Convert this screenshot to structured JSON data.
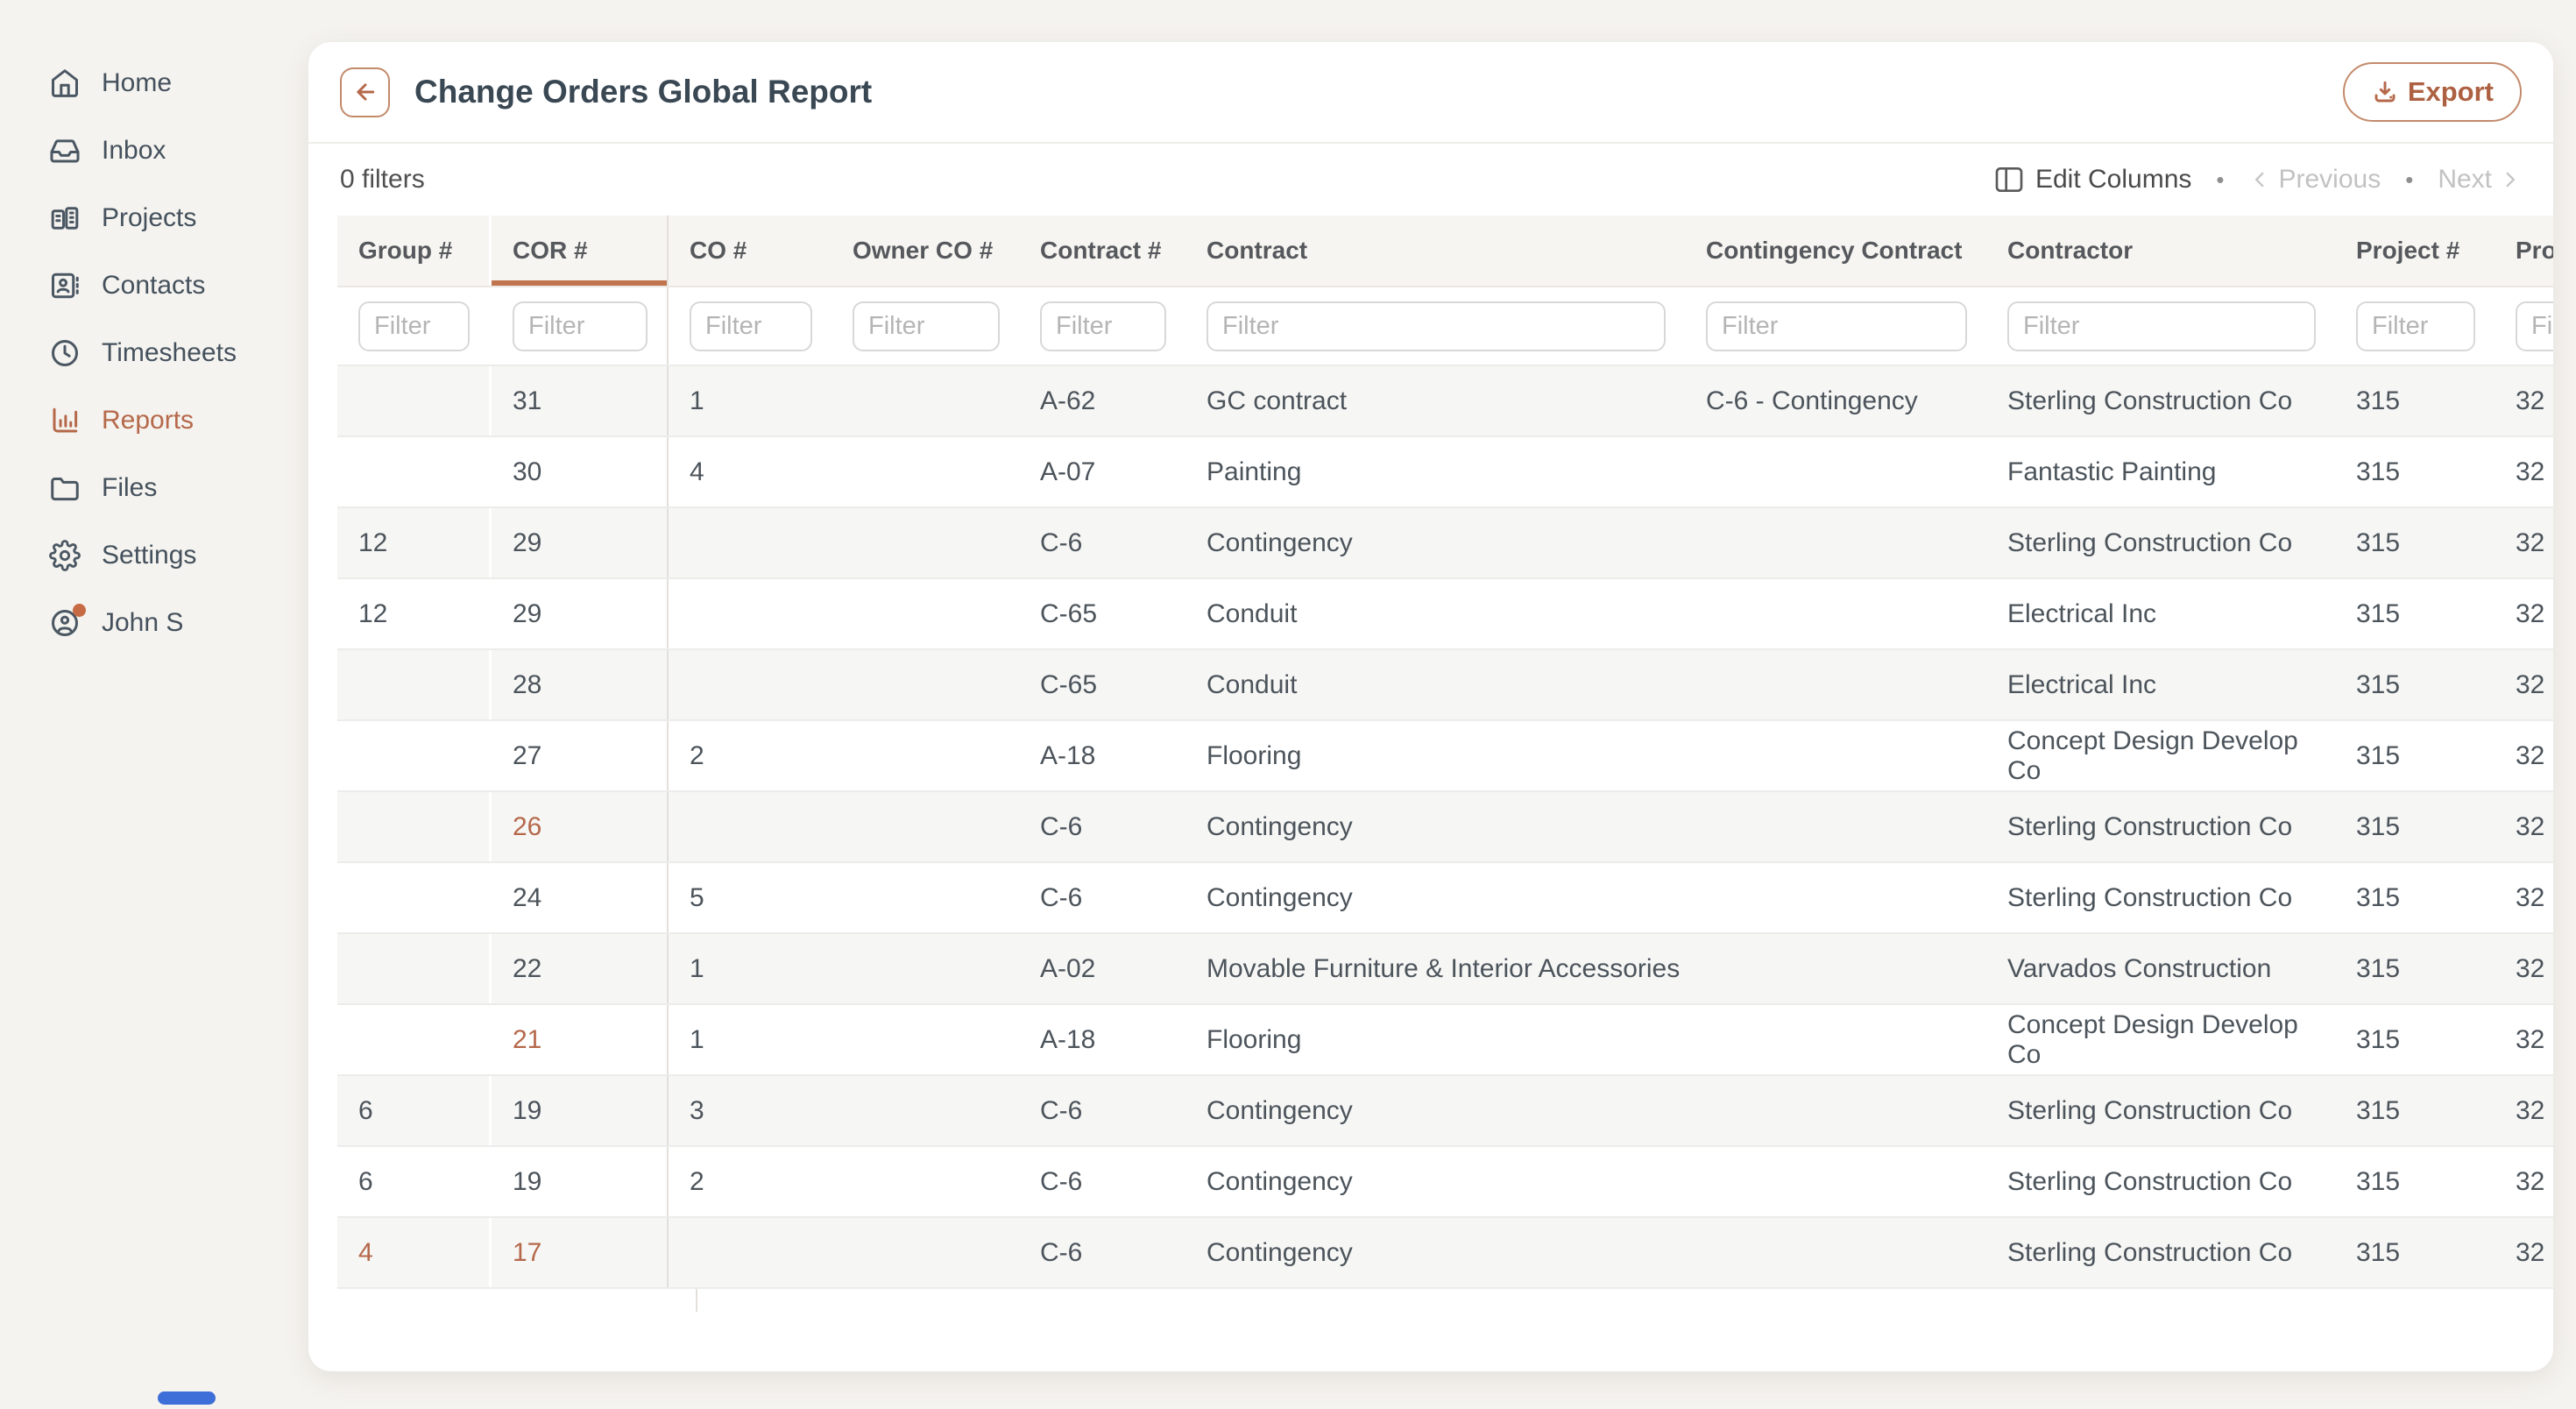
{
  "sidebar": {
    "items": [
      {
        "icon": "home-icon",
        "label": "Home",
        "active": false,
        "badge": false
      },
      {
        "icon": "inbox-icon",
        "label": "Inbox",
        "active": false,
        "badge": false
      },
      {
        "icon": "projects-icon",
        "label": "Projects",
        "active": false,
        "badge": false
      },
      {
        "icon": "contacts-icon",
        "label": "Contacts",
        "active": false,
        "badge": false
      },
      {
        "icon": "timesheets-icon",
        "label": "Timesheets",
        "active": false,
        "badge": false
      },
      {
        "icon": "reports-icon",
        "label": "Reports",
        "active": true,
        "badge": false
      },
      {
        "icon": "files-icon",
        "label": "Files",
        "active": false,
        "badge": false
      },
      {
        "icon": "settings-icon",
        "label": "Settings",
        "active": false,
        "badge": false
      },
      {
        "icon": "user-icon",
        "label": "John S",
        "active": false,
        "badge": true
      }
    ]
  },
  "header": {
    "title": "Change Orders Global Report",
    "export_label": "Export"
  },
  "toolbar": {
    "filters_label": "0 filters",
    "edit_columns_label": "Edit Columns",
    "previous_label": "Previous",
    "next_label": "Next",
    "separator_dot": "•"
  },
  "table": {
    "columns": [
      {
        "key": "group",
        "label": "Group #",
        "filter_placeholder": "Filter",
        "sorted": false
      },
      {
        "key": "cor",
        "label": "COR #",
        "filter_placeholder": "Filter",
        "sorted": true
      },
      {
        "key": "co",
        "label": "CO #",
        "filter_placeholder": "Filter",
        "sorted": false
      },
      {
        "key": "owner_co",
        "label": "Owner CO #",
        "filter_placeholder": "Filter",
        "sorted": false
      },
      {
        "key": "contract_no",
        "label": "Contract #",
        "filter_placeholder": "Filter",
        "sorted": false
      },
      {
        "key": "contract",
        "label": "Contract",
        "filter_placeholder": "Filter",
        "sorted": false
      },
      {
        "key": "contingency_contract",
        "label": "Contingency Contract",
        "filter_placeholder": "Filter",
        "sorted": false
      },
      {
        "key": "contractor",
        "label": "Contractor",
        "filter_placeholder": "Filter",
        "sorted": false
      },
      {
        "key": "project_no",
        "label": "Project #",
        "filter_placeholder": "Filter",
        "sorted": false
      },
      {
        "key": "project_partial",
        "label": "Pro",
        "filter_placeholder": "Filter",
        "sorted": false
      }
    ],
    "rows": [
      {
        "group": "",
        "cor": "31",
        "co": "1",
        "owner_co": "",
        "contract_no": "A-62",
        "contract": "GC contract",
        "contingency_contract": "C-6 - Contingency",
        "contractor": "Sterling Construction Co",
        "project_no": "315",
        "project_partial": "32",
        "accents": []
      },
      {
        "group": "",
        "cor": "30",
        "co": "4",
        "owner_co": "",
        "contract_no": "A-07",
        "contract": "Painting",
        "contingency_contract": "",
        "contractor": "Fantastic Painting",
        "project_no": "315",
        "project_partial": "32",
        "accents": []
      },
      {
        "group": "12",
        "cor": "29",
        "co": "",
        "owner_co": "",
        "contract_no": "C-6",
        "contract": "Contingency",
        "contingency_contract": "",
        "contractor": "Sterling Construction Co",
        "project_no": "315",
        "project_partial": "32",
        "accents": []
      },
      {
        "group": "12",
        "cor": "29",
        "co": "",
        "owner_co": "",
        "contract_no": "C-65",
        "contract": "Conduit",
        "contingency_contract": "",
        "contractor": "Electrical Inc",
        "project_no": "315",
        "project_partial": "32",
        "accents": []
      },
      {
        "group": "",
        "cor": "28",
        "co": "",
        "owner_co": "",
        "contract_no": "C-65",
        "contract": "Conduit",
        "contingency_contract": "",
        "contractor": "Electrical Inc",
        "project_no": "315",
        "project_partial": "32",
        "accents": []
      },
      {
        "group": "",
        "cor": "27",
        "co": "2",
        "owner_co": "",
        "contract_no": "A-18",
        "contract": "Flooring",
        "contingency_contract": "",
        "contractor": "Concept Design Develop Co",
        "project_no": "315",
        "project_partial": "32",
        "accents": []
      },
      {
        "group": "",
        "cor": "26",
        "co": "",
        "owner_co": "",
        "contract_no": "C-6",
        "contract": "Contingency",
        "contingency_contract": "",
        "contractor": "Sterling Construction Co",
        "project_no": "315",
        "project_partial": "32",
        "accents": [
          "cor"
        ]
      },
      {
        "group": "",
        "cor": "24",
        "co": "5",
        "owner_co": "",
        "contract_no": "C-6",
        "contract": "Contingency",
        "contingency_contract": "",
        "contractor": "Sterling Construction Co",
        "project_no": "315",
        "project_partial": "32",
        "accents": []
      },
      {
        "group": "",
        "cor": "22",
        "co": "1",
        "owner_co": "",
        "contract_no": "A-02",
        "contract": "Movable Furniture & Interior Accessories",
        "contingency_contract": "",
        "contractor": "Varvados Construction",
        "project_no": "315",
        "project_partial": "32",
        "accents": []
      },
      {
        "group": "",
        "cor": "21",
        "co": "1",
        "owner_co": "",
        "contract_no": "A-18",
        "contract": "Flooring",
        "contingency_contract": "",
        "contractor": "Concept Design Develop Co",
        "project_no": "315",
        "project_partial": "32",
        "accents": [
          "cor"
        ]
      },
      {
        "group": "6",
        "cor": "19",
        "co": "3",
        "owner_co": "",
        "contract_no": "C-6",
        "contract": "Contingency",
        "contingency_contract": "",
        "contractor": "Sterling Construction Co",
        "project_no": "315",
        "project_partial": "32",
        "accents": []
      },
      {
        "group": "6",
        "cor": "19",
        "co": "2",
        "owner_co": "",
        "contract_no": "C-6",
        "contract": "Contingency",
        "contingency_contract": "",
        "contractor": "Sterling Construction Co",
        "project_no": "315",
        "project_partial": "32",
        "accents": []
      },
      {
        "group": "4",
        "cor": "17",
        "co": "",
        "owner_co": "",
        "contract_no": "C-6",
        "contract": "Contingency",
        "contingency_contract": "",
        "contractor": "Sterling Construction Co",
        "project_no": "315",
        "project_partial": "32",
        "accents": [
          "group",
          "cor"
        ]
      }
    ]
  },
  "colors": {
    "accent": "#B5684A",
    "accent_border": "#C38A6B",
    "title_text": "#3A4854",
    "sidebar_text": "#44515D",
    "header_row_bg": "#F7F5F1",
    "stripe_bg": "#F6F6F5",
    "scrollbar_thumb": "#3E6FD9"
  }
}
